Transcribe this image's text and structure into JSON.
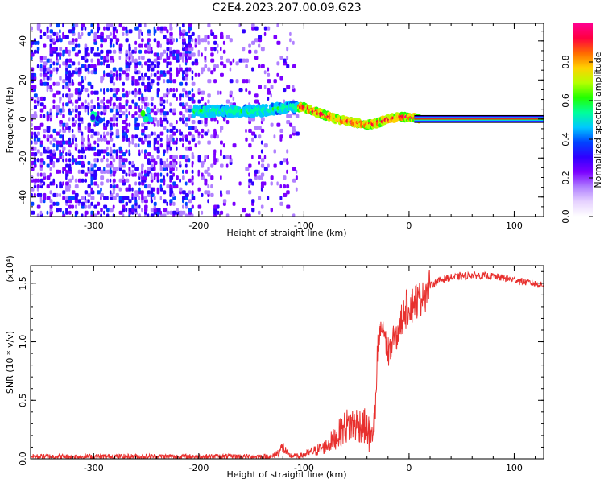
{
  "title": "C2E4.2023.207.00.09.G23",
  "chart_data": [
    {
      "type": "heatmap",
      "name": "spectrogram",
      "xlabel": "Height of straight line (km)",
      "ylabel": "Frequency (Hz)",
      "xlim": [
        -360,
        128
      ],
      "ylim": [
        -50,
        49
      ],
      "xticks": [
        -300,
        -200,
        -100,
        0,
        100
      ],
      "yticks": [
        -40,
        -20,
        0,
        20,
        40
      ],
      "colorbar": {
        "label": "Normalized spectral amplitude",
        "range": [
          0,
          1
        ],
        "ticks": [
          0.0,
          0.2,
          0.4,
          0.6,
          0.8
        ],
        "tick_labels": [
          "0.0",
          "0.2",
          "0.4",
          "0.6",
          "0.8"
        ],
        "colors": [
          "#ffffff",
          "#e6d2ff",
          "#b080ff",
          "#7b00ff",
          "#2f00ff",
          "#0044ff",
          "#00c8ff",
          "#00ff9a",
          "#22ff00",
          "#b4ff00",
          "#ffd200",
          "#ff6a00",
          "#ff0040",
          "#ff0090"
        ]
      },
      "ridge": [
        [
          -205,
          4
        ],
        [
          -190,
          4
        ],
        [
          -175,
          4
        ],
        [
          -160,
          4
        ],
        [
          -145,
          4
        ],
        [
          -130,
          5
        ],
        [
          -115,
          6
        ],
        [
          -100,
          6
        ],
        [
          -90,
          4
        ],
        [
          -80,
          2
        ],
        [
          -70,
          0
        ],
        [
          -60,
          -1
        ],
        [
          -50,
          -2
        ],
        [
          -40,
          -3
        ],
        [
          -30,
          -2
        ],
        [
          -20,
          0
        ],
        [
          -10,
          1
        ],
        [
          0,
          1
        ],
        [
          10,
          0
        ],
        [
          128,
          0
        ]
      ],
      "blobs": [
        [
          -298,
          0
        ],
        [
          -250,
          2
        ]
      ]
    },
    {
      "type": "line",
      "name": "snr",
      "xlabel": "Height of straight line (km)",
      "ylabel": "SNR (10 * v/v)",
      "scale_label": "(x10⁴)",
      "xlim": [
        -360,
        128
      ],
      "ylim": [
        0,
        1.65
      ],
      "xticks": [
        -300,
        -200,
        -100,
        0,
        100
      ],
      "yticks": [
        0.0,
        0.5,
        1.0,
        1.5
      ],
      "ytick_labels": [
        "0.0",
        "0.5",
        "1.0",
        "1.5"
      ],
      "line_color": "#e8302e",
      "envelope": [
        [
          -360,
          0.02
        ],
        [
          -300,
          0.02
        ],
        [
          -200,
          0.02
        ],
        [
          -130,
          0.02
        ],
        [
          -125,
          0.05
        ],
        [
          -120,
          0.1
        ],
        [
          -115,
          0.03
        ],
        [
          -105,
          0.02
        ],
        [
          -95,
          0.05
        ],
        [
          -80,
          0.1
        ],
        [
          -70,
          0.18
        ],
        [
          -60,
          0.28
        ],
        [
          -50,
          0.3
        ],
        [
          -42,
          0.28
        ],
        [
          -36,
          0.18
        ],
        [
          -32,
          0.4
        ],
        [
          -30,
          0.9
        ],
        [
          -28,
          1.05
        ],
        [
          -25,
          1.15
        ],
        [
          -20,
          0.9
        ],
        [
          -15,
          1.0
        ],
        [
          -10,
          1.1
        ],
        [
          -5,
          1.25
        ],
        [
          0,
          1.3
        ],
        [
          10,
          1.38
        ],
        [
          20,
          1.48
        ],
        [
          30,
          1.53
        ],
        [
          40,
          1.55
        ],
        [
          60,
          1.57
        ],
        [
          80,
          1.56
        ],
        [
          100,
          1.53
        ],
        [
          128,
          1.48
        ]
      ]
    }
  ]
}
